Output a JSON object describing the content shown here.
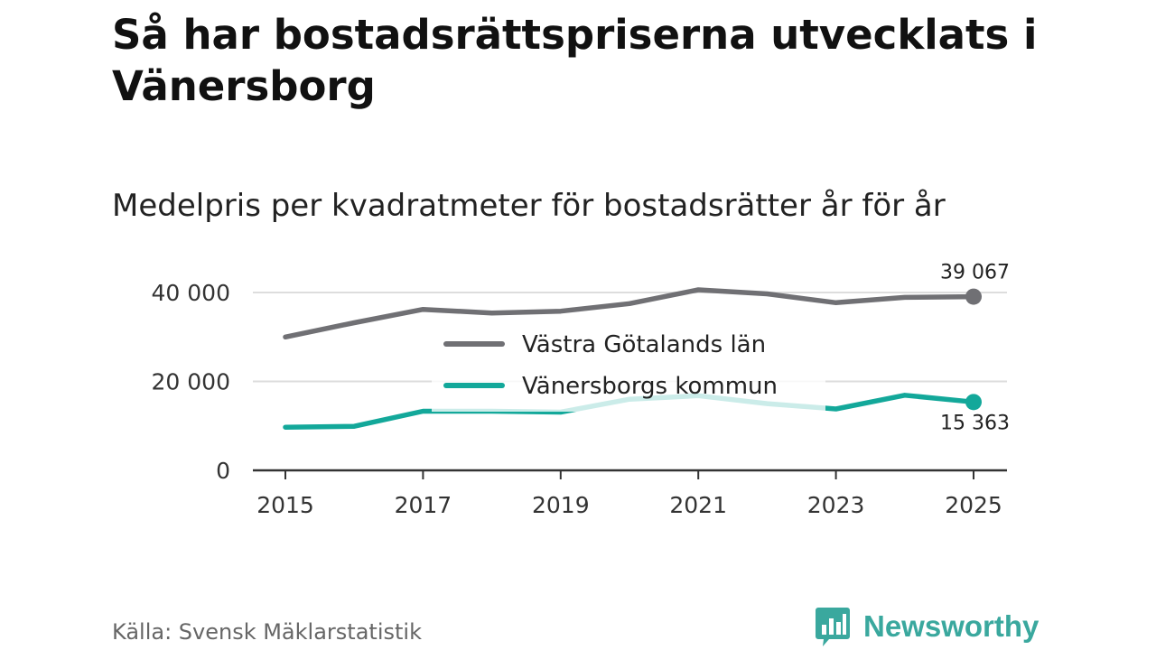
{
  "title": "Så har bostadsrättspriserna utvecklats i Vänersborg",
  "subtitle": "Medelpris per kvadratmeter för bostadsrätter år för år",
  "source": "Källa: Svensk Mäklarstatistik",
  "brand": {
    "name": "Newsworthy",
    "icon": "newsworthy-logo-icon",
    "color": "#3aa89e"
  },
  "chart_data": {
    "type": "line",
    "title": "Medelpris per kvadratmeter för bostadsrätter år för år",
    "xlabel": "",
    "ylabel": "",
    "x": [
      2015,
      2016,
      2017,
      2018,
      2019,
      2020,
      2021,
      2022,
      2023,
      2024,
      2025
    ],
    "x_tick_labels": [
      "2015",
      "2017",
      "2019",
      "2021",
      "2023",
      "2025"
    ],
    "y_ticks": [
      0,
      20000,
      40000
    ],
    "y_tick_labels": [
      "0",
      "20 000",
      "40 000"
    ],
    "ylim": [
      0,
      42000
    ],
    "grid": true,
    "legend_position": "center",
    "series": [
      {
        "name": "Västra Götalands län",
        "color": "#707074",
        "values": [
          30000,
          33200,
          36200,
          35400,
          35800,
          37500,
          40600,
          39700,
          37700,
          38900,
          39067
        ],
        "end_label": "39 067"
      },
      {
        "name": "Vänersborgs kommun",
        "color": "#13a89a",
        "values": [
          9700,
          9900,
          13300,
          13300,
          13100,
          16000,
          16800,
          15000,
          13800,
          16900,
          15363
        ],
        "end_label": "15 363"
      }
    ]
  }
}
